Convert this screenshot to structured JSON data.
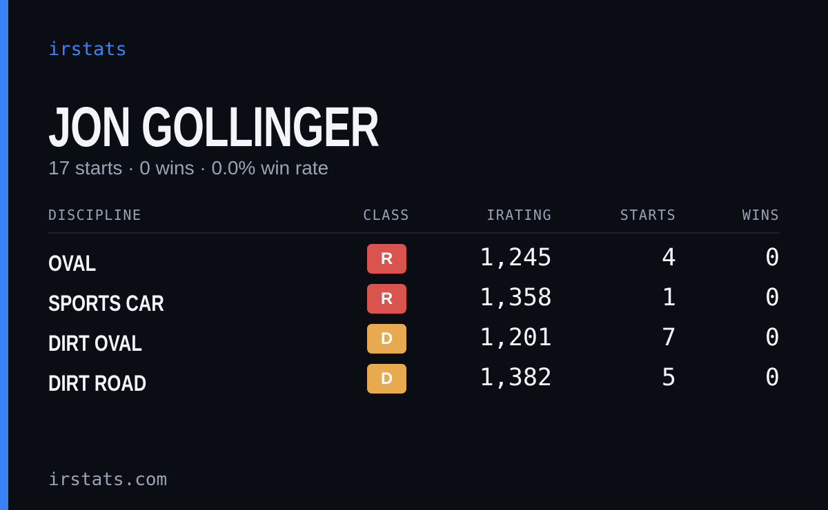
{
  "header": {
    "brand": "irstats",
    "name": "JON GOLLINGER",
    "summary": "17 starts · 0 wins · 0.0% win rate"
  },
  "table": {
    "columns": [
      "DISCIPLINE",
      "CLASS",
      "IRATING",
      "STARTS",
      "WINS"
    ],
    "rows": [
      {
        "discipline": "OVAL",
        "class": "R",
        "class_color": "#d9534f",
        "irating": "1,245",
        "starts": "4",
        "wins": "0"
      },
      {
        "discipline": "SPORTS CAR",
        "class": "R",
        "class_color": "#d9534f",
        "irating": "1,358",
        "starts": "1",
        "wins": "0"
      },
      {
        "discipline": "DIRT OVAL",
        "class": "D",
        "class_color": "#e8aa4e",
        "irating": "1,201",
        "starts": "7",
        "wins": "0"
      },
      {
        "discipline": "DIRT ROAD",
        "class": "D",
        "class_color": "#e8aa4e",
        "irating": "1,382",
        "starts": "5",
        "wins": "0"
      }
    ]
  },
  "footer": {
    "site": "irstats.com"
  }
}
